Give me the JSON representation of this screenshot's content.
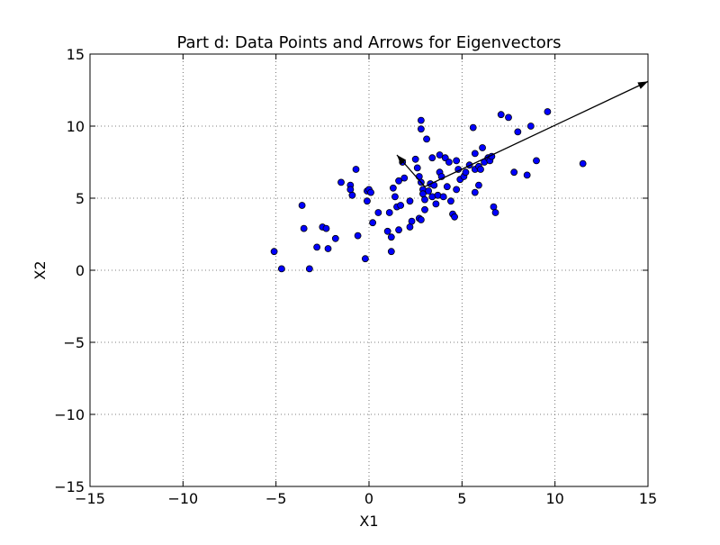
{
  "chart_data": {
    "type": "scatter",
    "title": "Part d: Data Points and Arrows for Eigenvectors",
    "xlabel": "X1",
    "ylabel": "X2",
    "xlim": [
      -15,
      15
    ],
    "ylim": [
      -15,
      15
    ],
    "xticks": [
      -15,
      -10,
      -5,
      0,
      5,
      10,
      15
    ],
    "yticks": [
      -15,
      -10,
      -5,
      0,
      5,
      10,
      15
    ],
    "xtick_labels": [
      "−15",
      "−10",
      "−5",
      "0",
      "5",
      "10",
      "15"
    ],
    "ytick_labels": [
      "−15",
      "−10",
      "−5",
      "0",
      "5",
      "10",
      "15"
    ],
    "grid": true,
    "colors": {
      "point_fill": "#0000ff",
      "point_edge": "#000000",
      "arrow": "#000000",
      "grid": "#555555"
    },
    "series": [
      {
        "points": [
          [
            -5.1,
            1.3
          ],
          [
            -4.7,
            0.1
          ],
          [
            -3.5,
            2.9
          ],
          [
            -3.6,
            4.5
          ],
          [
            -3.2,
            0.1
          ],
          [
            -2.8,
            1.6
          ],
          [
            -2.5,
            3.0
          ],
          [
            -2.3,
            2.9
          ],
          [
            -2.2,
            1.5
          ],
          [
            -1.8,
            2.2
          ],
          [
            -1.5,
            6.1
          ],
          [
            -1.0,
            5.9
          ],
          [
            -1.0,
            5.6
          ],
          [
            -0.9,
            5.2
          ],
          [
            -0.7,
            7.0
          ],
          [
            -0.6,
            2.4
          ],
          [
            -0.2,
            0.8
          ],
          [
            -0.1,
            5.5
          ],
          [
            -0.1,
            4.8
          ],
          [
            0.0,
            5.6
          ],
          [
            0.1,
            5.4
          ],
          [
            0.2,
            3.3
          ],
          [
            0.5,
            4.0
          ],
          [
            1.0,
            2.7
          ],
          [
            1.1,
            4.0
          ],
          [
            1.2,
            2.3
          ],
          [
            1.2,
            1.3
          ],
          [
            1.3,
            5.7
          ],
          [
            1.4,
            5.1
          ],
          [
            1.5,
            4.4
          ],
          [
            1.6,
            2.8
          ],
          [
            1.6,
            6.2
          ],
          [
            1.7,
            4.5
          ],
          [
            1.8,
            7.5
          ],
          [
            1.9,
            6.4
          ],
          [
            2.2,
            4.8
          ],
          [
            2.2,
            3.0
          ],
          [
            2.3,
            3.4
          ],
          [
            2.5,
            7.7
          ],
          [
            2.6,
            7.1
          ],
          [
            2.7,
            3.6
          ],
          [
            2.7,
            6.5
          ],
          [
            2.8,
            10.4
          ],
          [
            2.8,
            9.8
          ],
          [
            2.8,
            6.1
          ],
          [
            2.8,
            3.5
          ],
          [
            2.9,
            5.6
          ],
          [
            2.9,
            5.3
          ],
          [
            3.0,
            4.9
          ],
          [
            3.0,
            4.2
          ],
          [
            3.1,
            9.1
          ],
          [
            3.2,
            5.5
          ],
          [
            3.3,
            6.0
          ],
          [
            3.4,
            7.8
          ],
          [
            3.4,
            5.1
          ],
          [
            3.5,
            5.9
          ],
          [
            3.6,
            4.6
          ],
          [
            3.7,
            5.2
          ],
          [
            3.8,
            8.0
          ],
          [
            3.8,
            6.8
          ],
          [
            3.9,
            6.5
          ],
          [
            4.0,
            5.1
          ],
          [
            4.1,
            7.8
          ],
          [
            4.2,
            5.8
          ],
          [
            4.3,
            7.5
          ],
          [
            4.4,
            4.8
          ],
          [
            4.5,
            3.9
          ],
          [
            4.6,
            3.7
          ],
          [
            4.7,
            5.6
          ],
          [
            4.7,
            7.6
          ],
          [
            4.8,
            7.0
          ],
          [
            4.9,
            6.3
          ],
          [
            5.1,
            6.5
          ],
          [
            5.2,
            6.8
          ],
          [
            5.4,
            7.3
          ],
          [
            5.6,
            9.9
          ],
          [
            5.7,
            8.1
          ],
          [
            5.7,
            7.0
          ],
          [
            5.7,
            5.4
          ],
          [
            5.9,
            5.9
          ],
          [
            5.9,
            7.2
          ],
          [
            6.0,
            7.0
          ],
          [
            6.1,
            8.5
          ],
          [
            6.2,
            7.5
          ],
          [
            6.4,
            7.8
          ],
          [
            6.5,
            7.6
          ],
          [
            6.6,
            7.9
          ],
          [
            6.7,
            4.4
          ],
          [
            6.8,
            4.0
          ],
          [
            7.1,
            10.8
          ],
          [
            7.5,
            10.6
          ],
          [
            7.8,
            6.8
          ],
          [
            8.0,
            9.6
          ],
          [
            8.5,
            6.6
          ],
          [
            8.7,
            10.0
          ],
          [
            9.0,
            7.6
          ],
          [
            9.6,
            11.0
          ],
          [
            11.5,
            7.4
          ]
        ]
      }
    ],
    "arrows": [
      {
        "from": [
          3.0,
          5.8
        ],
        "to": [
          15.0,
          13.1
        ]
      },
      {
        "from": [
          3.0,
          5.8
        ],
        "to": [
          1.5,
          8.0
        ]
      }
    ]
  }
}
